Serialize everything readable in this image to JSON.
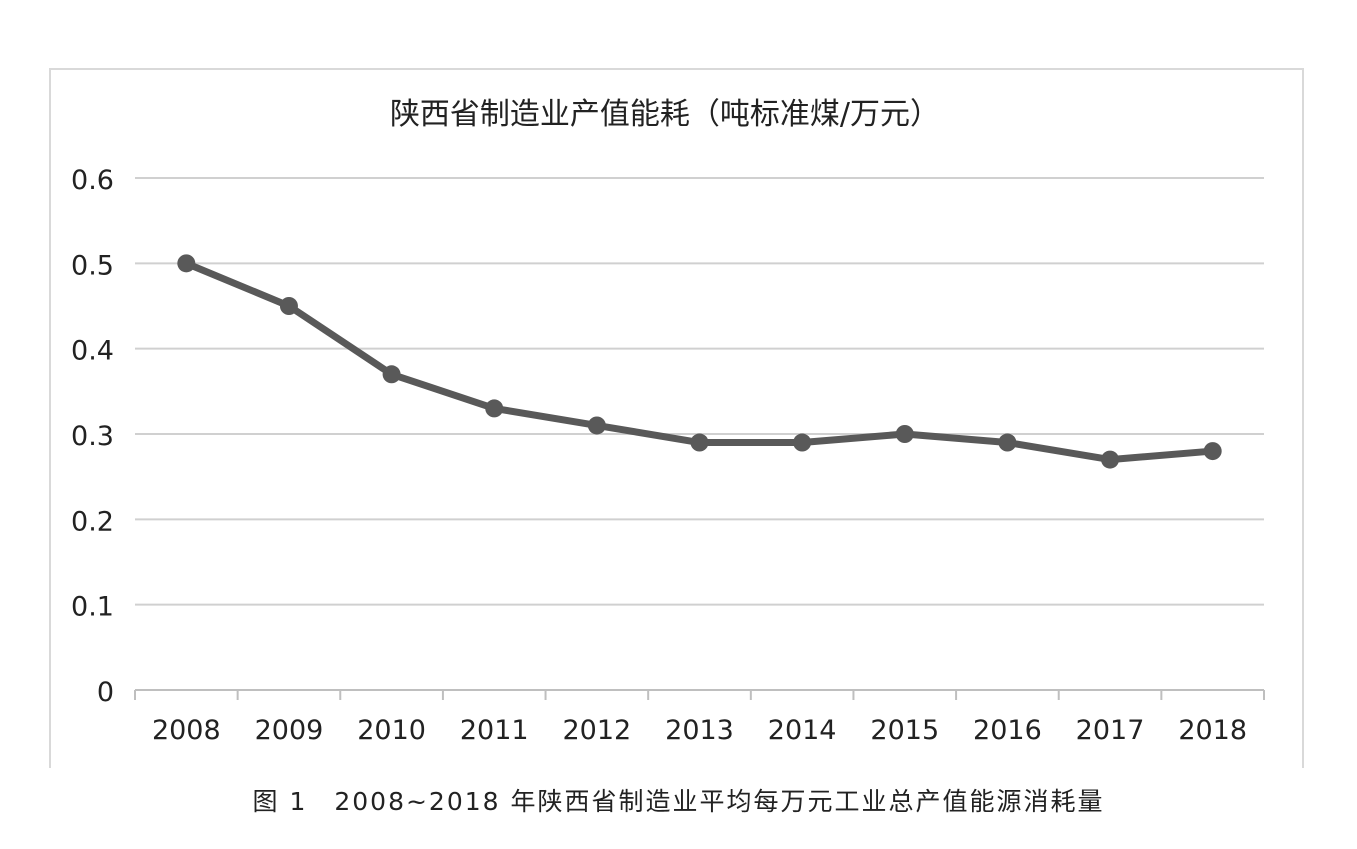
{
  "chart_data": {
    "type": "line",
    "title": "陕西省制造业产值能耗（吨标准煤/万元）",
    "x": [
      "2008",
      "2009",
      "2010",
      "2011",
      "2012",
      "2013",
      "2014",
      "2015",
      "2016",
      "2017",
      "2018"
    ],
    "series": [
      {
        "values": [
          0.5,
          0.45,
          0.37,
          0.33,
          0.31,
          0.29,
          0.29,
          0.3,
          0.29,
          0.27,
          0.28
        ]
      }
    ],
    "ylim": [
      0,
      0.6
    ],
    "yticks": [
      "0",
      "0.1",
      "0.2",
      "0.3",
      "0.4",
      "0.5",
      "0.6"
    ],
    "grid": true,
    "line_color": "#595959",
    "grid_color": "#d0d0d0"
  },
  "caption": "图 1　2008~2018 年陕西省制造业平均每万元工业总产值能源消耗量"
}
